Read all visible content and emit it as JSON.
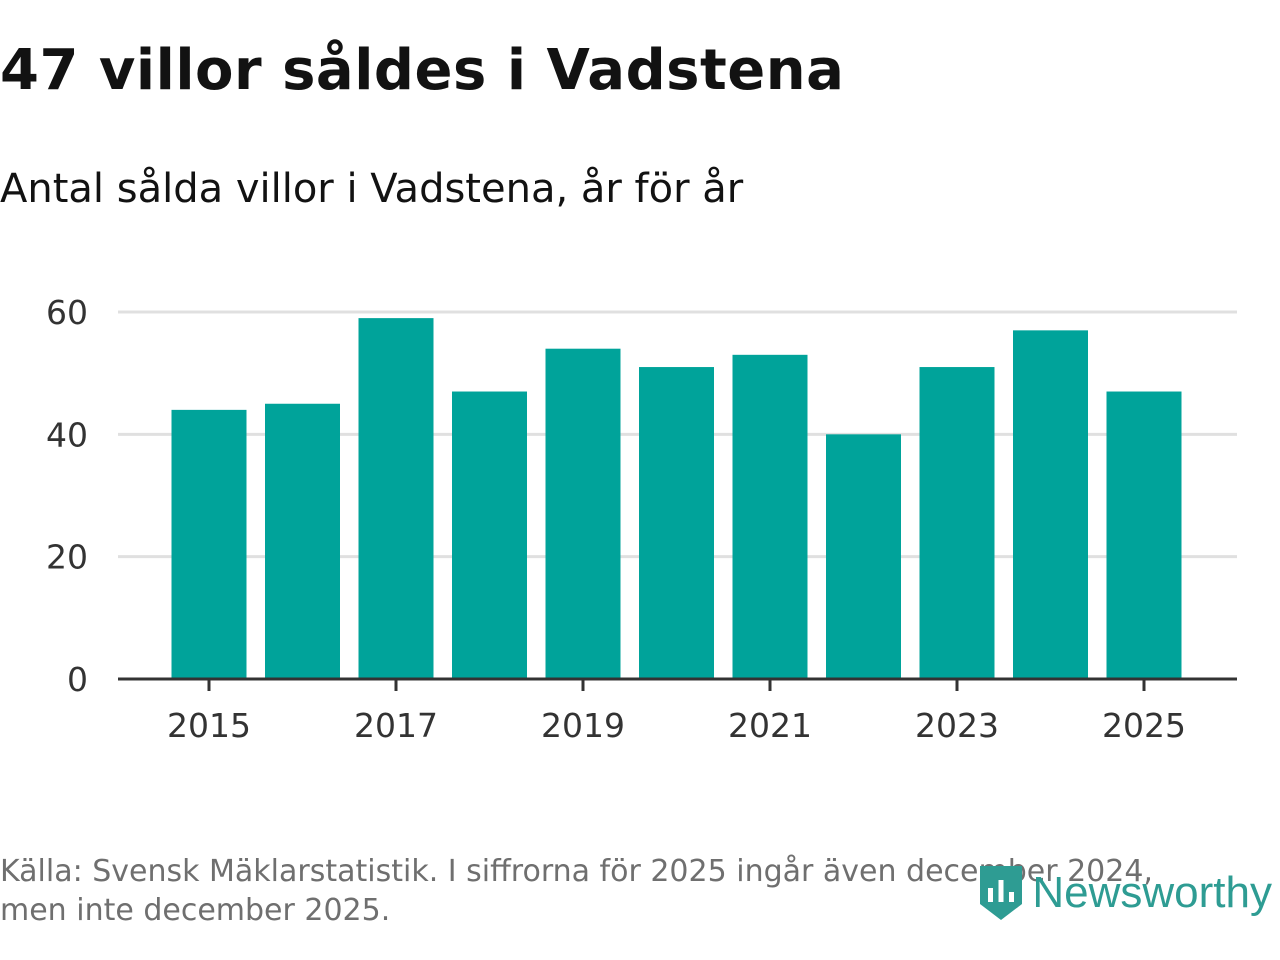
{
  "title": "47 villor såldes i Vadstena",
  "subtitle": "Antal sålda villor i Vadstena, år för år",
  "source": "Källa: Svensk Mäklarstatistik. I siffrorna för 2025 ingår även december 2024, men inte december 2025.",
  "brand": {
    "name": "Newsworthy",
    "color": "#2e9c93"
  },
  "colors": {
    "bar": "#00a39a",
    "grid": "#e0e0e0",
    "axis": "#333333"
  },
  "chart_data": {
    "type": "bar",
    "title": "Antal sålda villor i Vadstena, år för år",
    "categories": [
      "2015",
      "2016",
      "2017",
      "2018",
      "2019",
      "2020",
      "2021",
      "2022",
      "2023",
      "2024",
      "2025"
    ],
    "values": [
      44,
      45,
      59,
      47,
      54,
      51,
      53,
      40,
      51,
      57,
      47
    ],
    "xlabel": "",
    "ylabel": "",
    "ylim": [
      0,
      60
    ],
    "yticks": [
      "0",
      "20",
      "40",
      "60"
    ],
    "xtick_labels": [
      "2015",
      "2017",
      "2019",
      "2021",
      "2023",
      "2025"
    ],
    "grid": true,
    "legend": "none"
  }
}
